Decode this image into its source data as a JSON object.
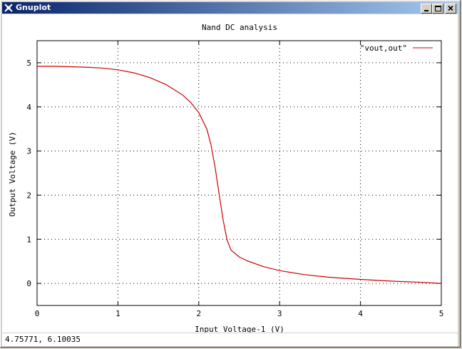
{
  "window": {
    "title": "Gnuplot",
    "controls": {
      "minimize": "minimize",
      "maximize": "maximize",
      "close": "close"
    }
  },
  "status": {
    "coordinates": "4.75771,  6.10035"
  },
  "colors": {
    "curve": "#cc0000",
    "titlebar_start": "#0a246a",
    "titlebar_end": "#a6caf0"
  },
  "chart_data": {
    "type": "line",
    "title": "Nand DC analysis",
    "xlabel": "Input Voltage-1 (V)",
    "ylabel": "Output Voltage (V)",
    "xlim": [
      0,
      5
    ],
    "ylim": [
      -0.5,
      5.5
    ],
    "xticks": [
      "0",
      "1",
      "2",
      "3",
      "4",
      "5"
    ],
    "yticks": [
      "0",
      "1",
      "2",
      "3",
      "4",
      "5"
    ],
    "grid": true,
    "legend": "top-right",
    "series": [
      {
        "name": "\"vout,out\"",
        "x": [
          0,
          0.2,
          0.4,
          0.6,
          0.8,
          1.0,
          1.2,
          1.4,
          1.6,
          1.8,
          1.9,
          2.0,
          2.1,
          2.15,
          2.2,
          2.25,
          2.3,
          2.35,
          2.4,
          2.5,
          2.6,
          2.8,
          3.0,
          3.3,
          3.6,
          4.0,
          4.4,
          4.8,
          5.0
        ],
        "y": [
          4.92,
          4.92,
          4.91,
          4.9,
          4.88,
          4.84,
          4.77,
          4.66,
          4.5,
          4.27,
          4.1,
          3.87,
          3.5,
          3.15,
          2.65,
          2.05,
          1.45,
          0.98,
          0.75,
          0.6,
          0.51,
          0.38,
          0.29,
          0.2,
          0.14,
          0.09,
          0.05,
          0.02,
          0.0
        ]
      }
    ]
  }
}
